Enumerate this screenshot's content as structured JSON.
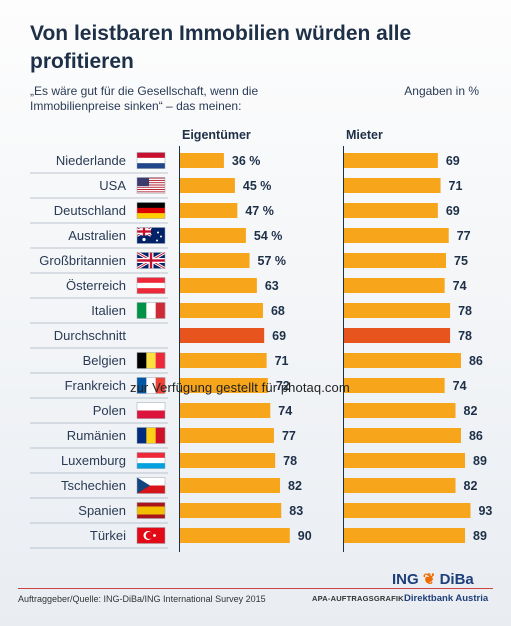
{
  "title": "Von leistbaren Immobilien würden alle profitieren",
  "subtitle": "„Es wäre gut für die Gesellschaft, wenn die Immobilienpreise sinken“ – das meinen:",
  "unit": "Angaben in %",
  "footer": {
    "source": "Auftraggeber/Quelle: ING-DiBa/ING International Survey 2015",
    "apa": "APA-AUFTRAGSGRAFIK",
    "logo": "ING",
    "logo_suffix": "DiBa",
    "bank": "Direktbank Austria"
  },
  "watermark": "zur Verfügung gestellt für photaq.com",
  "colors": {
    "bar": "#f7a51b",
    "highlight": "#e8541d"
  },
  "chart_data": {
    "type": "bar",
    "orientation": "horizontal",
    "categories": [
      "Niederlande",
      "USA",
      "Deutschland",
      "Australien",
      "Großbritannien",
      "Österreich",
      "Italien",
      "Durchschnitt",
      "Belgien",
      "Frankreich",
      "Polen",
      "Rumänien",
      "Luxemburg",
      "Tschechien",
      "Spanien",
      "Türkei"
    ],
    "series": [
      {
        "name": "Eigentümer",
        "values": [
          36,
          45,
          47,
          54,
          57,
          63,
          68,
          69,
          71,
          72,
          74,
          77,
          78,
          82,
          83,
          90
        ],
        "labels": [
          "36 %",
          "45 %",
          "47 %",
          "54 %",
          "57 %",
          "63",
          "68",
          "69",
          "71",
          "72",
          "74",
          "77",
          "78",
          "82",
          "83",
          "90"
        ]
      },
      {
        "name": "Mieter",
        "values": [
          69,
          71,
          69,
          77,
          75,
          74,
          78,
          78,
          86,
          74,
          82,
          86,
          89,
          82,
          93,
          89
        ],
        "labels": [
          "69",
          "71",
          "69",
          "77",
          "75",
          "74",
          "78",
          "78",
          "86",
          "74",
          "82",
          "86",
          "89",
          "82",
          "93",
          "89"
        ]
      }
    ],
    "highlight_category": "Durchschnitt",
    "flags": [
      "flag-netherlands-icon",
      "flag-usa-icon",
      "flag-germany-icon",
      "flag-australia-icon",
      "flag-uk-icon",
      "flag-austria-icon",
      "flag-italy-icon",
      "",
      "flag-belgium-icon",
      "flag-france-icon",
      "flag-poland-icon",
      "flag-romania-icon",
      "flag-luxembourg-icon",
      "flag-czech-icon",
      "flag-spain-icon",
      "flag-turkey-icon"
    ],
    "xlim": [
      0,
      100
    ],
    "grid": false
  }
}
